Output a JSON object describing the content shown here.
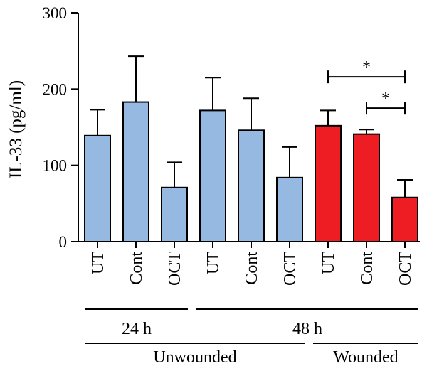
{
  "chart_data": {
    "type": "bar",
    "ylabel": "IL-33 (pg/ml)",
    "ylim": [
      0,
      300
    ],
    "yticks": [
      "0",
      "100",
      "200",
      "300"
    ],
    "ytick_values": [
      0,
      100,
      200,
      300
    ],
    "categories": [
      "UT",
      "Cont",
      "OCT",
      "UT",
      "Cont",
      "OCT",
      "UT",
      "Cont",
      "OCT"
    ],
    "values": [
      139,
      183,
      71,
      172,
      146,
      84,
      152,
      141,
      58
    ],
    "errors": [
      34,
      60,
      33,
      43,
      42,
      40,
      20,
      6,
      23
    ],
    "bar_colors": [
      "#95b9e0",
      "#95b9e0",
      "#95b9e0",
      "#95b9e0",
      "#95b9e0",
      "#95b9e0",
      "#ee1d24",
      "#ee1d24",
      "#ee1d24"
    ],
    "groups": [
      {
        "label": "24 h",
        "from": 0,
        "to": 2
      },
      {
        "label": "48 h",
        "from": 3,
        "to": 8
      },
      {
        "label": "Unwounded",
        "from": 0,
        "to": 5
      },
      {
        "label": "Wounded",
        "from": 6,
        "to": 8
      }
    ],
    "significance": [
      {
        "from": 6,
        "to": 8,
        "label": "*",
        "y": 216
      },
      {
        "from": 7,
        "to": 8,
        "label": "*",
        "y": 175
      }
    ],
    "grid": false,
    "legend": "none"
  }
}
